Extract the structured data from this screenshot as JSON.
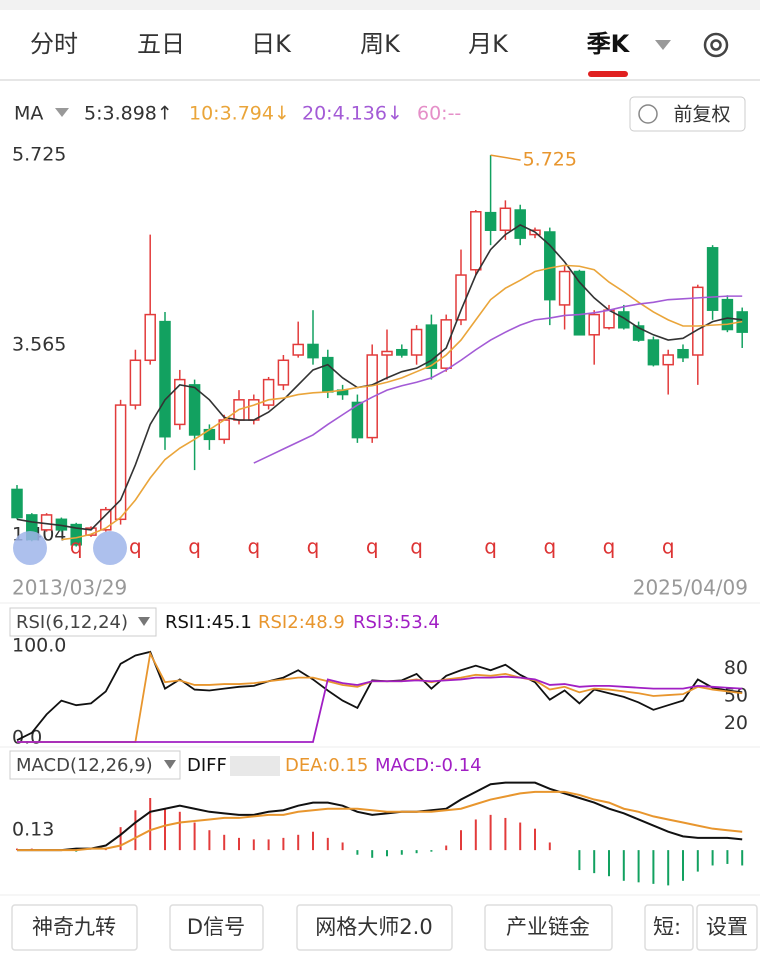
{
  "tabs": [
    "分时",
    "五日",
    "日K",
    "周K",
    "月K",
    "季K"
  ],
  "ma_label": "MA",
  "adjust_button": "前复权",
  "chart_data": [
    {
      "type": "candlestick",
      "categories": [
        "2013/03/29",
        null,
        null,
        null,
        null,
        null,
        null,
        null,
        null,
        null,
        null,
        null,
        null,
        null,
        null,
        null,
        null,
        null,
        null,
        null,
        null,
        null,
        null,
        null,
        null,
        null,
        null,
        null,
        null,
        null,
        null,
        null,
        null,
        null,
        null,
        null,
        null,
        null,
        null,
        null,
        null,
        null,
        null,
        null,
        null,
        null,
        null,
        null,
        null,
        "2025/04/09"
      ],
      "open": [
        1.92,
        1.63,
        1.46,
        1.58,
        1.52,
        1.4,
        1.46,
        1.58,
        2.88,
        3.39,
        3.83,
        2.66,
        3.11,
        2.6,
        2.49,
        2.71,
        2.71,
        2.88,
        3.11,
        3.45,
        3.57,
        3.42,
        3.05,
        2.91,
        2.51,
        3.45,
        3.51,
        3.45,
        3.79,
        3.3,
        3.85,
        4.42,
        5.07,
        4.87,
        5.1,
        4.82,
        4.85,
        4.02,
        4.4,
        3.68,
        3.76,
        3.94,
        3.78,
        3.62,
        3.34,
        3.51,
        3.45,
        4.67,
        4.08,
        3.94
      ],
      "high": [
        1.97,
        1.65,
        1.65,
        1.6,
        1.54,
        1.5,
        1.72,
        2.94,
        3.51,
        4.82,
        3.94,
        3.28,
        3.17,
        2.66,
        2.77,
        3.05,
        3.0,
        3.2,
        3.45,
        3.83,
        3.96,
        3.51,
        3.11,
        3.0,
        3.57,
        3.74,
        3.57,
        3.79,
        3.91,
        3.91,
        4.65,
        5.1,
        5.725,
        5.21,
        5.16,
        4.9,
        4.9,
        4.47,
        4.42,
        3.96,
        4.02,
        4.02,
        3.83,
        3.66,
        3.51,
        3.57,
        4.25,
        4.7,
        4.13,
        3.99
      ],
      "low": [
        1.58,
        1.33,
        1.44,
        1.44,
        1.27,
        1.38,
        1.44,
        1.52,
        2.83,
        3.34,
        2.37,
        2.6,
        2.14,
        2.37,
        2.44,
        2.66,
        2.66,
        2.83,
        3.05,
        3.42,
        3.34,
        2.96,
        2.94,
        2.45,
        2.45,
        3.17,
        3.42,
        3.34,
        3.17,
        3.26,
        3.79,
        4.36,
        4.7,
        4.76,
        4.7,
        4.78,
        3.79,
        3.74,
        3.68,
        3.34,
        3.74,
        3.74,
        3.6,
        3.32,
        3.0,
        3.37,
        3.11,
        3.85,
        3.71,
        3.53
      ],
      "close": [
        1.6,
        1.35,
        1.63,
        1.46,
        1.29,
        1.48,
        1.69,
        2.88,
        3.39,
        3.91,
        2.52,
        3.17,
        2.54,
        2.49,
        2.71,
        2.94,
        2.94,
        3.17,
        3.39,
        3.57,
        3.42,
        3.03,
        3.0,
        2.51,
        3.45,
        3.49,
        3.45,
        3.74,
        3.3,
        3.85,
        4.36,
        5.08,
        4.87,
        5.12,
        4.78,
        4.87,
        4.08,
        4.4,
        3.68,
        3.91,
        3.96,
        3.76,
        3.62,
        3.34,
        3.45,
        3.42,
        4.22,
        3.96,
        3.74,
        3.71
      ],
      "up_color": "#e23b3b",
      "down_color": "#12a160",
      "signals": [
        null,
        null,
        null,
        null,
        "q",
        null,
        null,
        null,
        "q",
        null,
        null,
        null,
        "q",
        null,
        null,
        null,
        "q",
        null,
        null,
        null,
        "q",
        null,
        null,
        null,
        "q",
        null,
        null,
        "q",
        null,
        null,
        null,
        null,
        "q",
        null,
        null,
        null,
        "q",
        null,
        null,
        null,
        "q",
        null,
        null,
        null,
        "q",
        null,
        null,
        null,
        null,
        null
      ],
      "series": [
        {
          "name": "5:3.898↑",
          "color": "#333333",
          "values": [
            1.58,
            1.55,
            1.53,
            1.51,
            1.48,
            1.46,
            1.63,
            1.8,
            2.2,
            2.66,
            2.94,
            3.11,
            3.08,
            2.94,
            2.74,
            2.71,
            2.71,
            2.8,
            2.94,
            3.11,
            3.28,
            3.34,
            3.19,
            3.08,
            3.11,
            3.19,
            3.26,
            3.3,
            3.39,
            3.53,
            3.96,
            4.36,
            4.65,
            4.82,
            4.93,
            4.85,
            4.7,
            4.51,
            4.28,
            4.1,
            3.96,
            3.87,
            3.76,
            3.68,
            3.62,
            3.64,
            3.74,
            3.83,
            3.87,
            3.85
          ]
        },
        {
          "name": "10:3.794↓",
          "color": "#eaa53a",
          "values": [
            null,
            null,
            null,
            1.35,
            1.37,
            1.41,
            1.48,
            1.6,
            1.8,
            2.05,
            2.26,
            2.39,
            2.49,
            2.6,
            2.71,
            2.83,
            2.88,
            2.94,
            2.96,
            3.0,
            3.02,
            3.03,
            3.05,
            3.08,
            3.1,
            3.14,
            3.19,
            3.26,
            3.33,
            3.45,
            3.62,
            3.85,
            4.08,
            4.21,
            4.3,
            4.4,
            4.44,
            4.47,
            4.46,
            4.42,
            4.28,
            4.17,
            4.05,
            3.94,
            3.85,
            3.78,
            3.78,
            3.79,
            3.8,
            3.83
          ]
        },
        {
          "name": "20:4.136↓",
          "color": "#a35bd6",
          "values": [
            null,
            null,
            null,
            null,
            null,
            null,
            null,
            null,
            null,
            null,
            null,
            null,
            null,
            null,
            null,
            null,
            2.22,
            2.3,
            2.38,
            2.46,
            2.54,
            2.66,
            2.77,
            2.88,
            2.97,
            3.05,
            3.1,
            3.14,
            3.19,
            3.28,
            3.39,
            3.51,
            3.62,
            3.71,
            3.79,
            3.85,
            3.87,
            3.9,
            3.91,
            3.93,
            3.96,
            4.0,
            4.03,
            4.05,
            4.08,
            4.09,
            4.1,
            4.11,
            4.12,
            4.12
          ]
        }
      ],
      "ma60_label": "60:--",
      "ylim": [
        1.06,
        5.84
      ],
      "yticks": [
        5.725,
        3.565,
        1.404
      ]
    },
    {
      "type": "line",
      "legend_title": "RSI(6,12,24)",
      "series": [
        {
          "name": "RSI1:45.1",
          "color": "#111111",
          "values": [
            2,
            10,
            30,
            45,
            40,
            42,
            55,
            85,
            94,
            98,
            58,
            68,
            57,
            56,
            58,
            60,
            61,
            66,
            70,
            78,
            68,
            56,
            45,
            37,
            67,
            66,
            67,
            74,
            58,
            72,
            78,
            83,
            78,
            84,
            73,
            65,
            46,
            56,
            42,
            57,
            53,
            49,
            43,
            35,
            40,
            45,
            68,
            59,
            56,
            54
          ]
        },
        {
          "name": "RSI2:48.9",
          "color": "#e8962e",
          "values": [
            0,
            0,
            0,
            0,
            0,
            0,
            0,
            0,
            0,
            96,
            65,
            67,
            62,
            62,
            63,
            63,
            64,
            66,
            68,
            70,
            70,
            66,
            62,
            60,
            66,
            66,
            66,
            68,
            65,
            68,
            70,
            73,
            72,
            74,
            70,
            67,
            57,
            60,
            54,
            58,
            57,
            55,
            53,
            50,
            51,
            52,
            60,
            57,
            55,
            53
          ]
        },
        {
          "name": "RSI3:53.4",
          "color": "#a11fc4",
          "values": [
            0,
            0,
            0,
            0,
            0,
            0,
            0,
            0,
            0,
            0,
            0,
            0,
            0,
            0,
            0,
            0,
            0,
            0,
            0,
            0,
            0,
            68,
            64,
            62,
            66,
            66,
            66,
            67,
            66,
            67,
            68,
            70,
            70,
            71,
            70,
            68,
            62,
            63,
            60,
            61,
            61,
            60,
            59,
            58,
            58,
            58,
            61,
            60,
            59,
            58
          ]
        }
      ],
      "ylim": [
        0,
        100
      ],
      "yticks": [
        {
          "value": 0,
          "label": "0.0"
        },
        {
          "value": 100,
          "label": "100.0"
        }
      ],
      "y2lim": [
        0,
        100
      ],
      "y2ticks": [
        20,
        50,
        80
      ]
    },
    {
      "type": "macd",
      "legend_title": "MACD(12,26,9)",
      "series": [
        {
          "name": "DIFF",
          "color": "#111111",
          "values": [
            0,
            0,
            0,
            0,
            0.01,
            0.01,
            0.03,
            0.1,
            0.18,
            0.25,
            0.27,
            0.29,
            0.27,
            0.25,
            0.24,
            0.23,
            0.23,
            0.25,
            0.26,
            0.29,
            0.31,
            0.31,
            0.29,
            0.25,
            0.23,
            0.24,
            0.25,
            0.25,
            0.26,
            0.27,
            0.33,
            0.38,
            0.43,
            0.44,
            0.44,
            0.44,
            0.4,
            0.37,
            0.34,
            0.31,
            0.27,
            0.24,
            0.2,
            0.16,
            0.12,
            0.09,
            0.08,
            0.08,
            0.08,
            0.07
          ]
        },
        {
          "name": "DEA:0.15",
          "color": "#e8962e",
          "values": [
            0,
            0,
            0,
            0,
            0,
            0.01,
            0.01,
            0.03,
            0.08,
            0.13,
            0.16,
            0.18,
            0.19,
            0.2,
            0.21,
            0.21,
            0.22,
            0.23,
            0.23,
            0.25,
            0.26,
            0.27,
            0.27,
            0.27,
            0.26,
            0.25,
            0.25,
            0.25,
            0.25,
            0.26,
            0.27,
            0.3,
            0.33,
            0.35,
            0.37,
            0.38,
            0.38,
            0.38,
            0.36,
            0.33,
            0.31,
            0.27,
            0.25,
            0.22,
            0.2,
            0.18,
            0.16,
            0.14,
            0.13,
            0.12
          ]
        }
      ],
      "histogram": {
        "name": "MACD:-0.14",
        "values": [
          0.01,
          0.01,
          0,
          0,
          -0.01,
          0,
          0.01,
          0.15,
          0.26,
          0.34,
          0.27,
          0.25,
          0.18,
          0.13,
          0.1,
          0.08,
          0.07,
          0.07,
          0.08,
          0.1,
          0.12,
          0.08,
          0.05,
          -0.03,
          -0.05,
          -0.04,
          -0.03,
          -0.02,
          -0.01,
          0.03,
          0.13,
          0.2,
          0.23,
          0.21,
          0.18,
          0.14,
          0.05,
          0,
          -0.13,
          -0.15,
          -0.17,
          -0.2,
          -0.21,
          -0.22,
          -0.23,
          -0.2,
          -0.14,
          -0.1,
          -0.09,
          -0.1
        ]
      },
      "ylim": [
        -0.26,
        0.49
      ],
      "yticks": [
        0.13
      ]
    }
  ],
  "buttons": [
    "神奇九转",
    "D信号",
    "网格大师2.0",
    "产业链金",
    "短:",
    "设置"
  ]
}
